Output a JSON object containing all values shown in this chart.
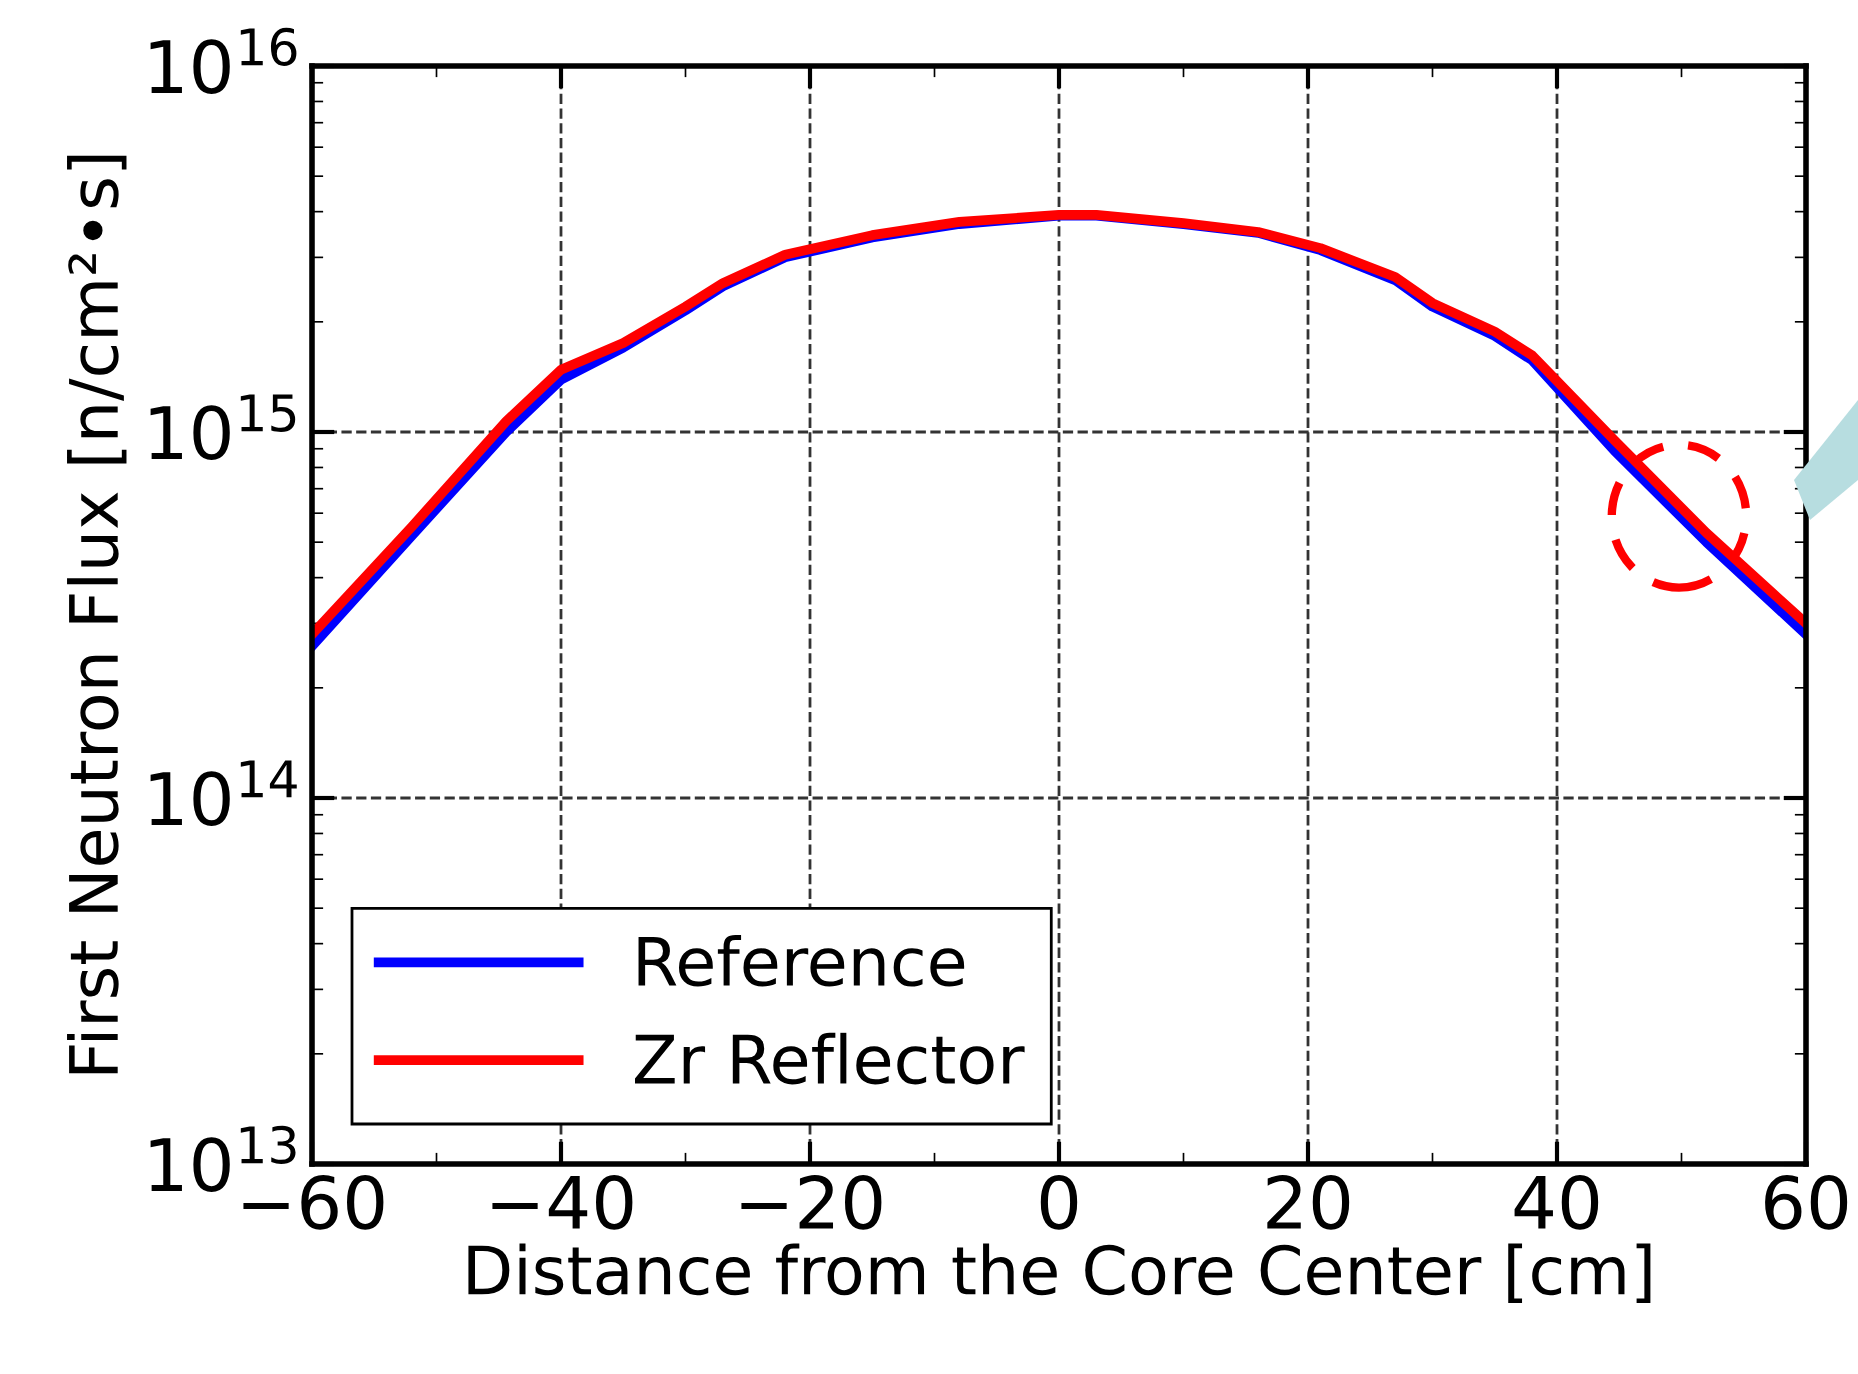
{
  "chart_data": {
    "type": "line",
    "xlabel": "Distance from the Core Center [cm]",
    "ylabel": "First Neutron Flux [n/cm²•s]",
    "x": [
      -60,
      -52,
      -44.4,
      -40,
      -35,
      -30,
      -27,
      -22,
      -15,
      -8,
      0,
      3,
      10,
      16,
      21,
      27,
      30,
      35,
      38,
      44.6,
      52,
      60
    ],
    "series": [
      {
        "name": "Reference",
        "color": "#0000ff",
        "values": [
          260000000000000.0,
          520000000000000.0,
          1000000000000000.0,
          1390000000000000.0,
          1700000000000000.0,
          2150000000000000.0,
          2500000000000000.0,
          3000000000000000.0,
          3400000000000000.0,
          3700000000000000.0,
          3900000000000000.0,
          3900000000000000.0,
          3700000000000000.0,
          3500000000000000.0,
          3140000000000000.0,
          2600000000000000.0,
          2200000000000000.0,
          1830000000000000.0,
          1570000000000000.0,
          890000000000000.0,
          500000000000000.0,
          280000000000000.0
        ]
      },
      {
        "name": "Zr Reflector",
        "color": "#ff0000",
        "values": [
          280000000000000.0,
          550000000000000.0,
          1070000000000000.0,
          1480000000000000.0,
          1750000000000000.0,
          2200000000000000.0,
          2550000000000000.0,
          3050000000000000.0,
          3450000000000000.0,
          3750000000000000.0,
          3920000000000000.0,
          3920000000000000.0,
          3720000000000000.0,
          3520000000000000.0,
          3180000000000000.0,
          2650000000000000.0,
          2250000000000000.0,
          1880000000000000.0,
          1620000000000000.0,
          950000000000000.0,
          530000000000000.0,
          300000000000000.0
        ]
      }
    ],
    "log": "y",
    "xlim": [
      -60,
      60
    ],
    "ylim": [
      10000000000000.0,
      1e+16
    ],
    "xticks": [
      -60,
      -40,
      -20,
      0,
      20,
      40,
      60
    ],
    "yticks": [
      {
        "value": 10000000000000.0,
        "label": "10$^{13}$"
      },
      {
        "value": 100000000000000.0,
        "label": "10$^{14}$"
      },
      {
        "value": 1000000000000000.0,
        "label": "10$^{15}$"
      },
      {
        "value": 1e+16,
        "label": "10$^{16}$"
      }
    ],
    "grid": true,
    "legend": "bottom left",
    "line_style": "solid",
    "marker": "none"
  }
}
